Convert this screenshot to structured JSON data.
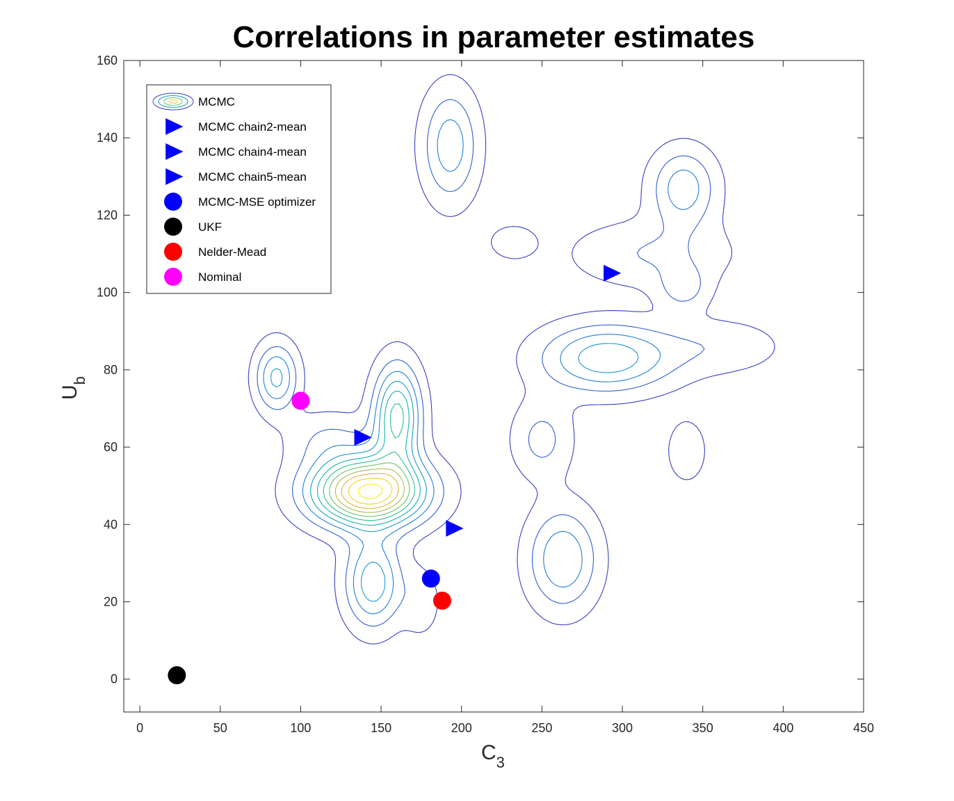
{
  "chart_data": {
    "type": "contour",
    "title": "Correlations in parameter estimates",
    "xlabel": "C",
    "xlabel_sub": "3",
    "ylabel": "U",
    "ylabel_sub": "b",
    "xlim": [
      -10,
      450
    ],
    "ylim": [
      -8.5,
      160
    ],
    "xticks": [
      0,
      50,
      100,
      150,
      200,
      250,
      300,
      350,
      400,
      450
    ],
    "yticks": [
      0,
      20,
      40,
      60,
      80,
      100,
      120,
      140,
      160
    ],
    "legend_position": "top-left",
    "legend": [
      {
        "label": "MCMC",
        "marker": "contour"
      },
      {
        "label": "MCMC chain2-mean",
        "marker": "triangle-right",
        "color": "#0000ff"
      },
      {
        "label": "MCMC chain4-mean",
        "marker": "triangle-right",
        "color": "#0000ff"
      },
      {
        "label": "MCMC chain5-mean",
        "marker": "triangle-right",
        "color": "#0000ff"
      },
      {
        "label": "MCMC-MSE optimizer",
        "marker": "circle",
        "color": "#0000ff"
      },
      {
        "label": "UKF",
        "marker": "circle",
        "color": "#000000"
      },
      {
        "label": "Nelder-Mead",
        "marker": "circle",
        "color": "#ff0000"
      },
      {
        "label": "Nominal",
        "marker": "circle",
        "color": "#ff00ff"
      }
    ],
    "points": [
      {
        "name": "MCMC chain2-mean",
        "x": 138,
        "y": 62.5,
        "marker": "triangle-right",
        "color": "#0000ff"
      },
      {
        "name": "MCMC chain4-mean",
        "x": 195,
        "y": 39,
        "marker": "triangle-right",
        "color": "#0000ff"
      },
      {
        "name": "MCMC chain5-mean",
        "x": 293,
        "y": 105,
        "marker": "triangle-right",
        "color": "#0000ff"
      },
      {
        "name": "MCMC-MSE optimizer",
        "x": 181,
        "y": 26,
        "marker": "circle",
        "color": "#0000ff"
      },
      {
        "name": "UKF",
        "x": 23,
        "y": 1,
        "marker": "circle",
        "color": "#000000"
      },
      {
        "name": "Nelder-Mead",
        "x": 188,
        "y": 20.3,
        "marker": "circle",
        "color": "#ff0000"
      },
      {
        "name": "Nominal",
        "x": 100,
        "y": 72,
        "marker": "circle",
        "color": "#ff00ff"
      }
    ],
    "contour_levels": [
      "#3a3fc4",
      "#2f5fd6",
      "#1f7fd8",
      "#1a9ac8",
      "#14b2b0",
      "#2bbf8f",
      "#66c46a",
      "#a8c04a",
      "#e0b23e",
      "#f4d02a",
      "#f9ee17"
    ],
    "density_peaks": [
      {
        "x": 142,
        "y": 48.5,
        "sx": 24,
        "sy": 6,
        "w": 1.0
      },
      {
        "x": 160,
        "y": 68,
        "sx": 10,
        "sy": 9,
        "w": 0.55
      },
      {
        "x": 85,
        "y": 78,
        "sx": 9,
        "sy": 6,
        "w": 0.36
      },
      {
        "x": 145,
        "y": 25,
        "sx": 12,
        "sy": 8,
        "w": 0.4
      },
      {
        "x": 193,
        "y": 138,
        "sx": 12,
        "sy": 10,
        "w": 0.3
      },
      {
        "x": 338,
        "y": 127,
        "sx": 14,
        "sy": 7,
        "w": 0.3
      },
      {
        "x": 290,
        "y": 83,
        "sx": 28,
        "sy": 6,
        "w": 0.4
      },
      {
        "x": 263,
        "y": 31,
        "sx": 15,
        "sy": 9,
        "w": 0.33
      },
      {
        "x": 250,
        "y": 62,
        "sx": 13,
        "sy": 7,
        "w": 0.18
      },
      {
        "x": 338,
        "y": 101,
        "sx": 11,
        "sy": 4,
        "w": 0.17
      },
      {
        "x": 318,
        "y": 110,
        "sx": 35,
        "sy": 6,
        "w": 0.15
      },
      {
        "x": 232,
        "y": 113,
        "sx": 10,
        "sy": 3,
        "w": 0.13
      },
      {
        "x": 118,
        "y": 62,
        "sx": 18,
        "sy": 5,
        "w": 0.15
      },
      {
        "x": 360,
        "y": 86,
        "sx": 28,
        "sy": 5,
        "w": 0.12
      },
      {
        "x": 340,
        "y": 59,
        "sx": 9,
        "sy": 6,
        "w": 0.12
      },
      {
        "x": 175,
        "y": 20,
        "sx": 8,
        "sy": 6,
        "w": 0.12
      }
    ]
  }
}
